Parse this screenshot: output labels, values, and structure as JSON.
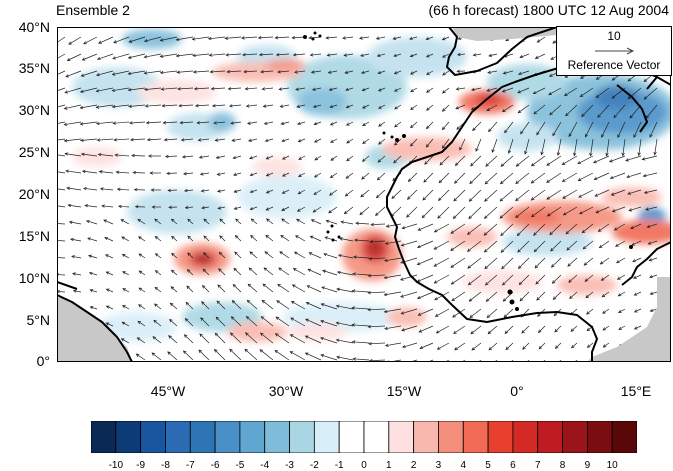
{
  "header": {
    "left_title": "Ensemble 2",
    "right_title": "(66 h forecast) 1800 UTC 12 Aug 2004"
  },
  "map": {
    "lat_labels": [
      "40°N",
      "35°N",
      "30°N",
      "25°N",
      "20°N",
      "15°N",
      "10°N",
      "5°N",
      "0°"
    ],
    "lon_labels": [
      "45°W",
      "30°W",
      "15°W",
      "0°",
      "15°E"
    ],
    "lat_range": [
      0,
      40
    ],
    "lon_range": [
      -62,
      19
    ]
  },
  "reference_vector": {
    "value": "10",
    "label": "Reference Vector"
  },
  "colorbar": {
    "labels": [
      "-10",
      "-9",
      "-8",
      "-7",
      "-6",
      "-5",
      "-4",
      "-3",
      "-2",
      "-1",
      "0",
      "1",
      "2",
      "3",
      "4",
      "5",
      "6",
      "7",
      "8",
      "9",
      "10"
    ],
    "colors": [
      "#0a2a55",
      "#0d3b78",
      "#1a55a0",
      "#2b6cb5",
      "#2e75b6",
      "#4a90c8",
      "#5fa7d1",
      "#7fbcd9",
      "#a8d6e3",
      "#d8eef8",
      "#ffffff",
      "#ffffff",
      "#fde0df",
      "#f9b8ad",
      "#f48f7c",
      "#f06a55",
      "#e8402e",
      "#d42a26",
      "#bf1b22",
      "#9a1419",
      "#7a0d10",
      "#5a0708"
    ]
  }
}
